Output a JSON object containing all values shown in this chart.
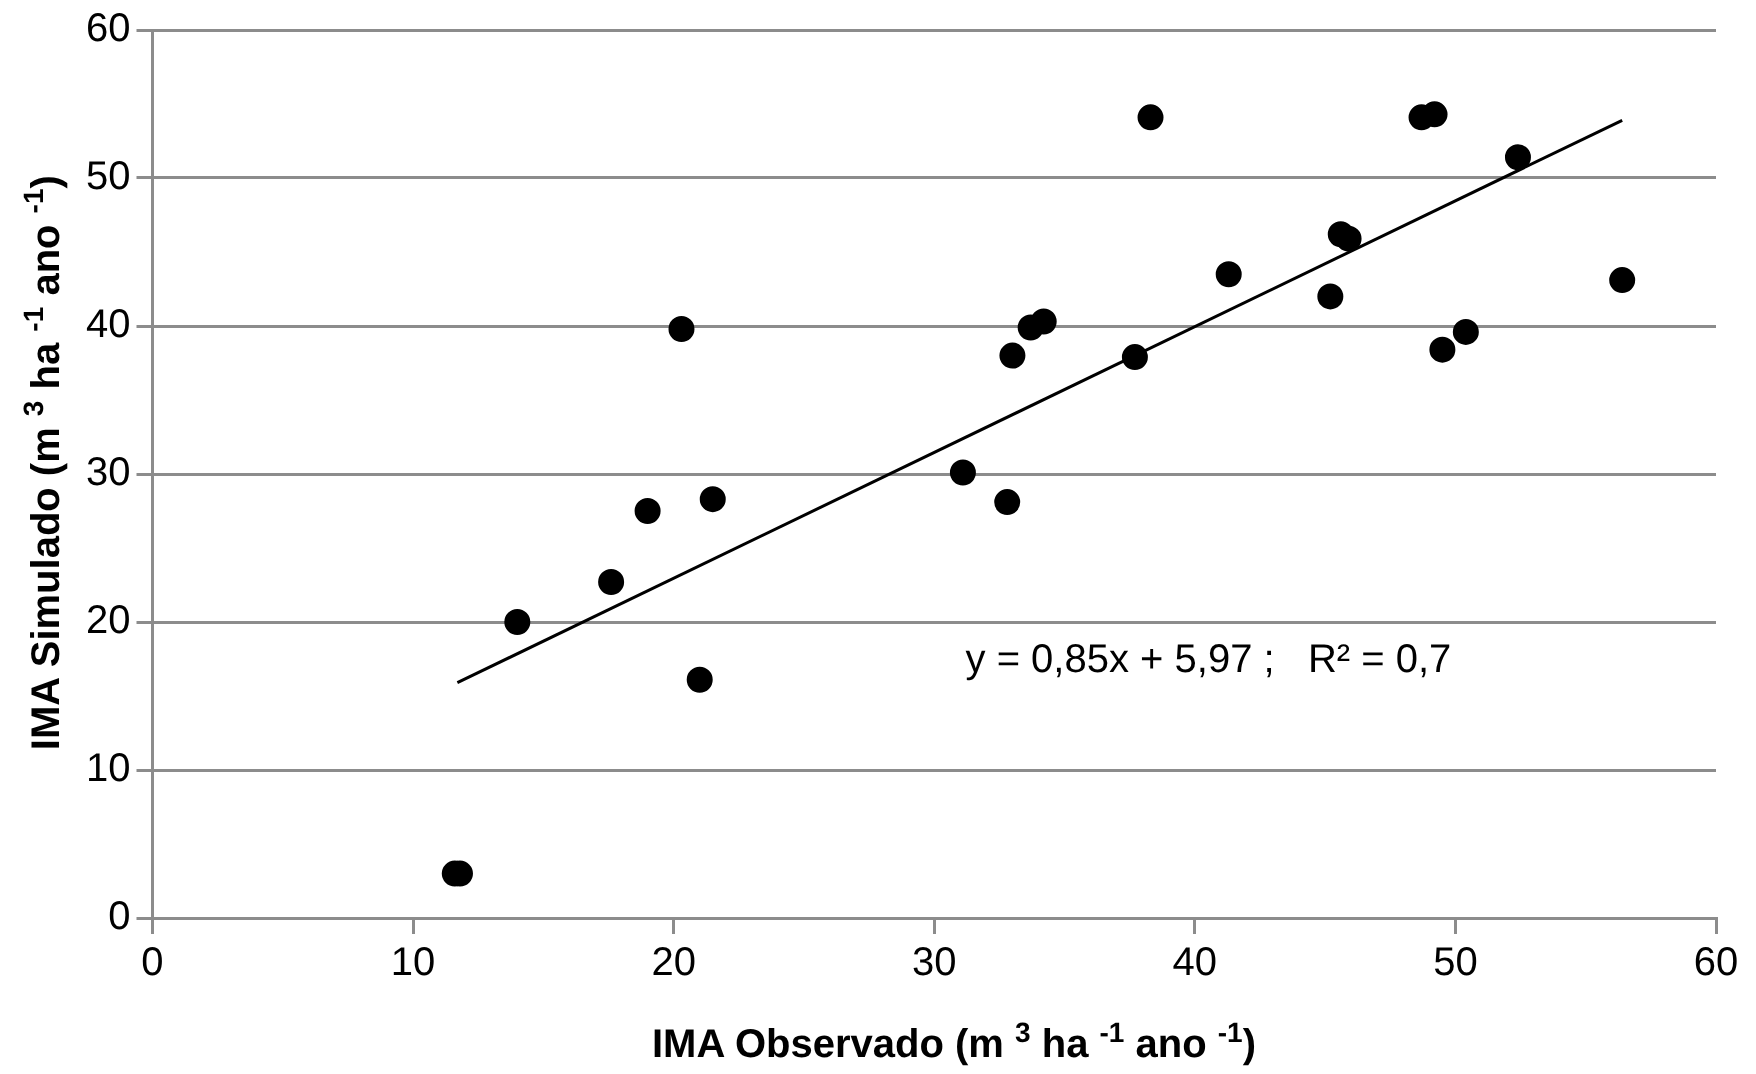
{
  "chart_data": {
    "type": "scatter",
    "xlabel": "IMA Observado (m $^{3}$ ha $^{-1}$ ano $^{-1}$)",
    "ylabel": "IMA Simulado (m $^{3}$ ha $^{-1}$ ano $^{-1}$)",
    "xlim": [
      0,
      60
    ],
    "xticks": [
      0,
      10,
      20,
      30,
      40,
      50,
      60
    ],
    "ylim": [
      0,
      60
    ],
    "yticks": [
      0,
      10,
      20,
      30,
      40,
      50,
      60
    ],
    "grid": "y",
    "legend": false,
    "marker": "circle",
    "series": [
      {
        "type": "scatter",
        "color": "#000000",
        "x": [
          11.6,
          11.8,
          14,
          17.6,
          19,
          20.3,
          21,
          21.5,
          31.1,
          32.8,
          33,
          33.7,
          34.2,
          37.7,
          38.3,
          41.3,
          45.2,
          45.6,
          45.9,
          48.7,
          49.2,
          49.5,
          50.4,
          52.4,
          56.4
        ],
        "values": [
          3,
          3,
          20,
          22.7,
          27.5,
          39.8,
          16.1,
          28.3,
          30.1,
          28.1,
          38,
          39.9,
          40.3,
          37.9,
          54.1,
          43.5,
          42,
          46.2,
          45.9,
          54.1,
          54.3,
          38.4,
          39.6,
          51.4,
          43.1
        ]
      },
      {
        "type": "line",
        "marker": "none",
        "color": "#000000",
        "x": [
          11.7,
          56.4
        ],
        "values": [
          15.9,
          53.9
        ]
      }
    ],
    "annotations": [
      "y = 0,85x + 5,97 ;   R² = 0,7"
    ]
  }
}
